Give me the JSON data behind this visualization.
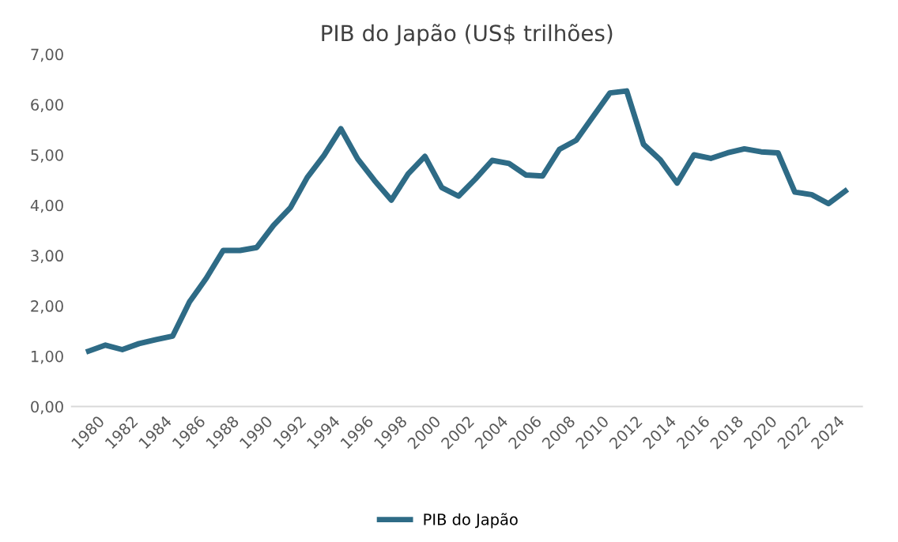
{
  "chart_data": {
    "type": "line",
    "title": "PIB do Japão (US$ trilhões)",
    "categories": [
      "1980",
      null,
      "1982",
      null,
      "1984",
      null,
      "1986",
      null,
      "1988",
      null,
      "1990",
      null,
      "1992",
      null,
      "1994",
      null,
      "1996",
      null,
      "1998",
      null,
      "2000",
      null,
      "2002",
      null,
      "2004",
      null,
      "2006",
      null,
      "2008",
      null,
      "2010",
      null,
      "2012",
      null,
      "2014",
      null,
      "2016",
      null,
      "2018",
      null,
      "2020",
      null,
      "2022",
      null,
      "2024",
      null
    ],
    "series": [
      {
        "name": "PIB do Japão",
        "color": "#2e6b86",
        "values": [
          1.1,
          1.22,
          1.13,
          1.25,
          1.33,
          1.4,
          2.08,
          2.55,
          3.1,
          3.1,
          3.16,
          3.6,
          3.95,
          4.55,
          4.99,
          5.52,
          4.92,
          4.49,
          4.1,
          4.62,
          4.97,
          4.35,
          4.18,
          4.52,
          4.89,
          4.83,
          4.6,
          4.58,
          5.11,
          5.29,
          5.76,
          6.23,
          6.27,
          5.21,
          4.9,
          4.44,
          5.0,
          4.93,
          5.04,
          5.12,
          5.06,
          5.04,
          4.26,
          4.21,
          4.03,
          4.28
        ]
      }
    ],
    "ylim": [
      0,
      7
    ],
    "yticks": [
      {
        "value": 0,
        "label": "0,00"
      },
      {
        "value": 1,
        "label": "1,00"
      },
      {
        "value": 2,
        "label": "2,00"
      },
      {
        "value": 3,
        "label": "3,00"
      },
      {
        "value": 4,
        "label": "4,00"
      },
      {
        "value": 5,
        "label": "5,00"
      },
      {
        "value": 6,
        "label": "6,00"
      },
      {
        "value": 7,
        "label": "7,00"
      }
    ],
    "grid": false,
    "legend": "bottom",
    "marker": "none",
    "line_style": "solid"
  }
}
